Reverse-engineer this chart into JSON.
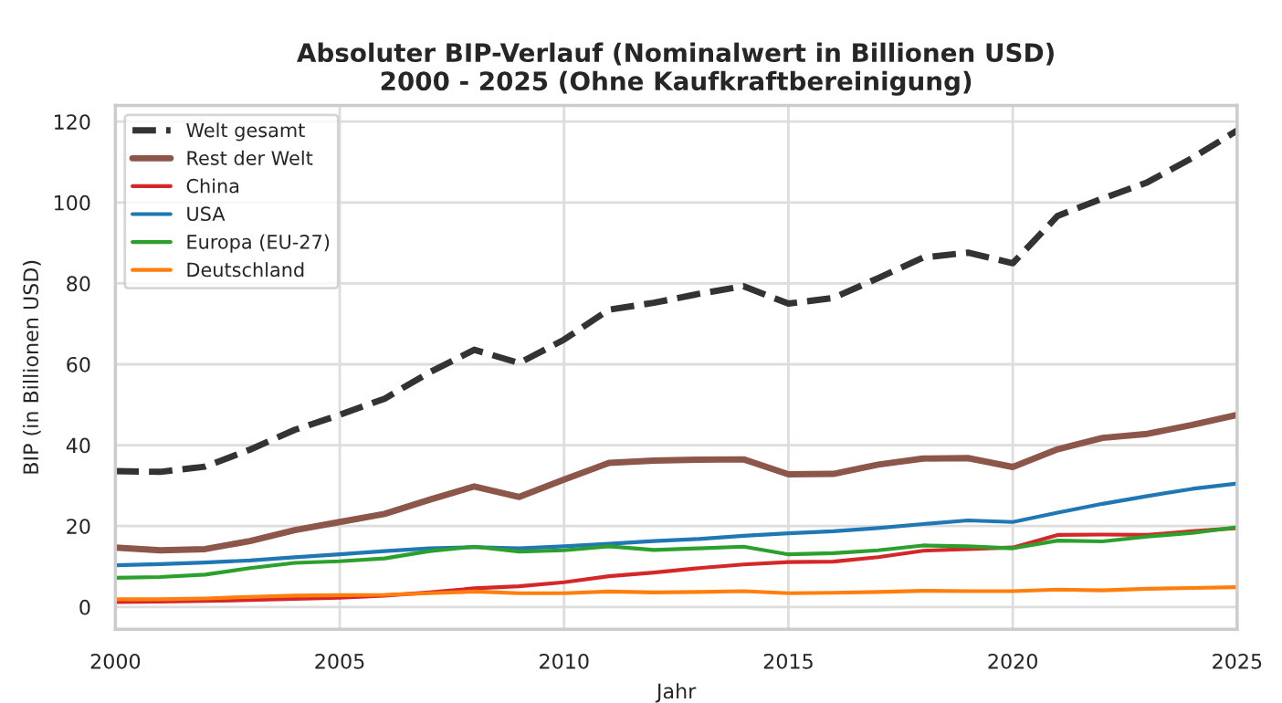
{
  "chart_data": {
    "type": "line",
    "title": "Absoluter BIP-Verlauf (Nominalwert in Billionen USD)\n2000 - 2025 (Ohne Kaufkraftbereinigung)",
    "xlabel": "Jahr",
    "ylabel": "BIP (in Billionen USD)",
    "x": [
      2000,
      2001,
      2002,
      2003,
      2004,
      2005,
      2006,
      2007,
      2008,
      2009,
      2010,
      2011,
      2012,
      2013,
      2014,
      2015,
      2016,
      2017,
      2018,
      2019,
      2020,
      2021,
      2022,
      2023,
      2024,
      2025
    ],
    "series": [
      {
        "name": "Welt gesamt",
        "color": "#333333",
        "line_style": "dashed",
        "values": [
          33.6,
          33.4,
          34.7,
          38.9,
          43.8,
          47.5,
          51.5,
          58,
          63.6,
          60.3,
          66.1,
          73.5,
          75.2,
          77.4,
          79.3,
          75,
          76.4,
          81.3,
          86.4,
          87.6,
          85,
          96.7,
          101,
          105,
          111,
          117.8
        ]
      },
      {
        "name": "Rest der Welt",
        "color": "#8c564b",
        "values": [
          14.7,
          14,
          14.3,
          16.3,
          19,
          21,
          23,
          26.5,
          29.8,
          27.2,
          31.5,
          35.6,
          36.2,
          36.4,
          36.5,
          32.8,
          32.9,
          35.2,
          36.7,
          36.8,
          34.6,
          39,
          41.8,
          42.8,
          45,
          47.5
        ]
      },
      {
        "name": "China",
        "color": "#d62728",
        "values": [
          1.2,
          1.3,
          1.5,
          1.7,
          2.0,
          2.3,
          2.8,
          3.6,
          4.6,
          5.1,
          6.1,
          7.6,
          8.5,
          9.6,
          10.5,
          11.1,
          11.2,
          12.3,
          13.9,
          14.3,
          14.7,
          17.8,
          17.9,
          17.8,
          18.7,
          19.5
        ]
      },
      {
        "name": "USA",
        "color": "#1f77b4",
        "values": [
          10.3,
          10.6,
          11,
          11.5,
          12.3,
          13,
          13.8,
          14.5,
          14.8,
          14.5,
          15,
          15.6,
          16.3,
          16.8,
          17.6,
          18.2,
          18.7,
          19.5,
          20.5,
          21.4,
          21,
          23.3,
          25.5,
          27.4,
          29.2,
          30.5
        ]
      },
      {
        "name": "Europa (EU-27)",
        "color": "#2ca02c",
        "values": [
          7.2,
          7.4,
          8,
          9.6,
          10.9,
          11.3,
          12,
          13.8,
          14.9,
          13.7,
          14,
          15,
          14.1,
          14.5,
          14.9,
          13,
          13.3,
          14,
          15.2,
          15,
          14.5,
          16.4,
          16.2,
          17.4,
          18.3,
          19.7
        ]
      },
      {
        "name": "Deutschland",
        "color": "#ff7f0e",
        "values": [
          1.9,
          1.9,
          2.1,
          2.5,
          2.8,
          2.9,
          3,
          3.4,
          3.8,
          3.4,
          3.4,
          3.8,
          3.6,
          3.7,
          3.9,
          3.4,
          3.5,
          3.7,
          4,
          3.9,
          3.9,
          4.3,
          4.1,
          4.5,
          4.7,
          4.9
        ]
      }
    ],
    "xlim": [
      2000,
      2025
    ],
    "xticks": [
      2000,
      2005,
      2010,
      2015,
      2020,
      2025
    ],
    "ylim": [
      -5.5,
      124
    ],
    "yticks": [
      0,
      20,
      40,
      60,
      80,
      100,
      120
    ],
    "grid": true,
    "legend": "top left",
    "line_style": "solid"
  }
}
